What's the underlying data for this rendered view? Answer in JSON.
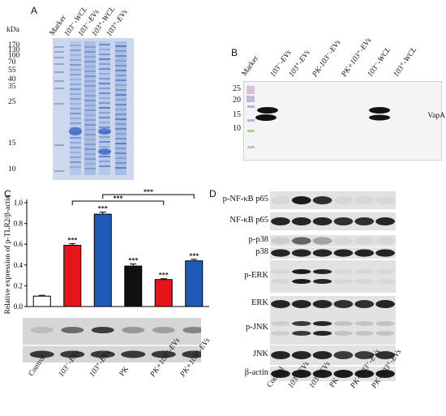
{
  "panels": {
    "A": {
      "letter": "A",
      "kda_label": "kDa",
      "ladder": [
        "170",
        "130",
        "100",
        "70",
        "55",
        "40",
        "35",
        "25",
        "15",
        "10"
      ],
      "lanes": [
        "Marker",
        "103⁻-WCL",
        "103⁻-EVs",
        "103⁺-WCL",
        "103⁺-EVs"
      ]
    },
    "B": {
      "letter": "B",
      "ladder": [
        "25",
        "20",
        "15",
        "10"
      ],
      "lanes": [
        "Marker",
        "103⁻-EVs",
        "103⁺-EVs",
        "PK-103⁻-EVs",
        "PK+103⁺-EVs",
        "103⁻-WCL",
        "103⁺-WCL"
      ],
      "band_label": "VapA"
    },
    "C": {
      "letter": "C",
      "sig_label": "***",
      "x_labels": [
        "Control",
        "103⁻-EVs",
        "103⁺-EVs",
        "PK",
        "PK+103⁻-EVs",
        "PK+103⁺-EVs"
      ]
    },
    "D": {
      "letter": "D",
      "rows": [
        "p-NF-κB p65",
        "NF-κB p65",
        "p-p38",
        "p38",
        "p-ERK",
        "ERK",
        "p-JNK",
        "JNK",
        "β-actin"
      ],
      "x_labels": [
        "Control",
        "103⁻-EVs",
        "103⁺-EVs",
        "PK",
        "PK+103⁻-EVs",
        "PK+103⁺-EVs"
      ]
    }
  },
  "chart_data": {
    "type": "bar",
    "ylabel": "Relative expression of p-TLR2/β-actin",
    "categories": [
      "Control",
      "103⁻-EVs",
      "103⁺-EVs",
      "PK",
      "PK+103⁻-EVs",
      "PK+103⁺-EVs"
    ],
    "values": [
      0.1,
      0.59,
      0.89,
      0.39,
      0.26,
      0.44
    ],
    "errors": [
      0.008,
      0.015,
      0.02,
      0.02,
      0.008,
      0.015
    ],
    "colors": [
      "#ffffff",
      "#e8141c",
      "#1e5bb8",
      "#111111",
      "#e8141c",
      "#1e5bb8"
    ],
    "ylim": [
      0,
      1.0
    ],
    "yticks": [
      "0.0",
      "0.2",
      "0.4",
      "0.6",
      "0.8",
      "1.0"
    ],
    "significance": [
      "",
      "***",
      "***",
      "***",
      "***",
      "***"
    ],
    "brackets": [
      {
        "from": 1,
        "to": 4,
        "label": "***"
      },
      {
        "from": 2,
        "to": 5,
        "label": "***"
      }
    ]
  }
}
